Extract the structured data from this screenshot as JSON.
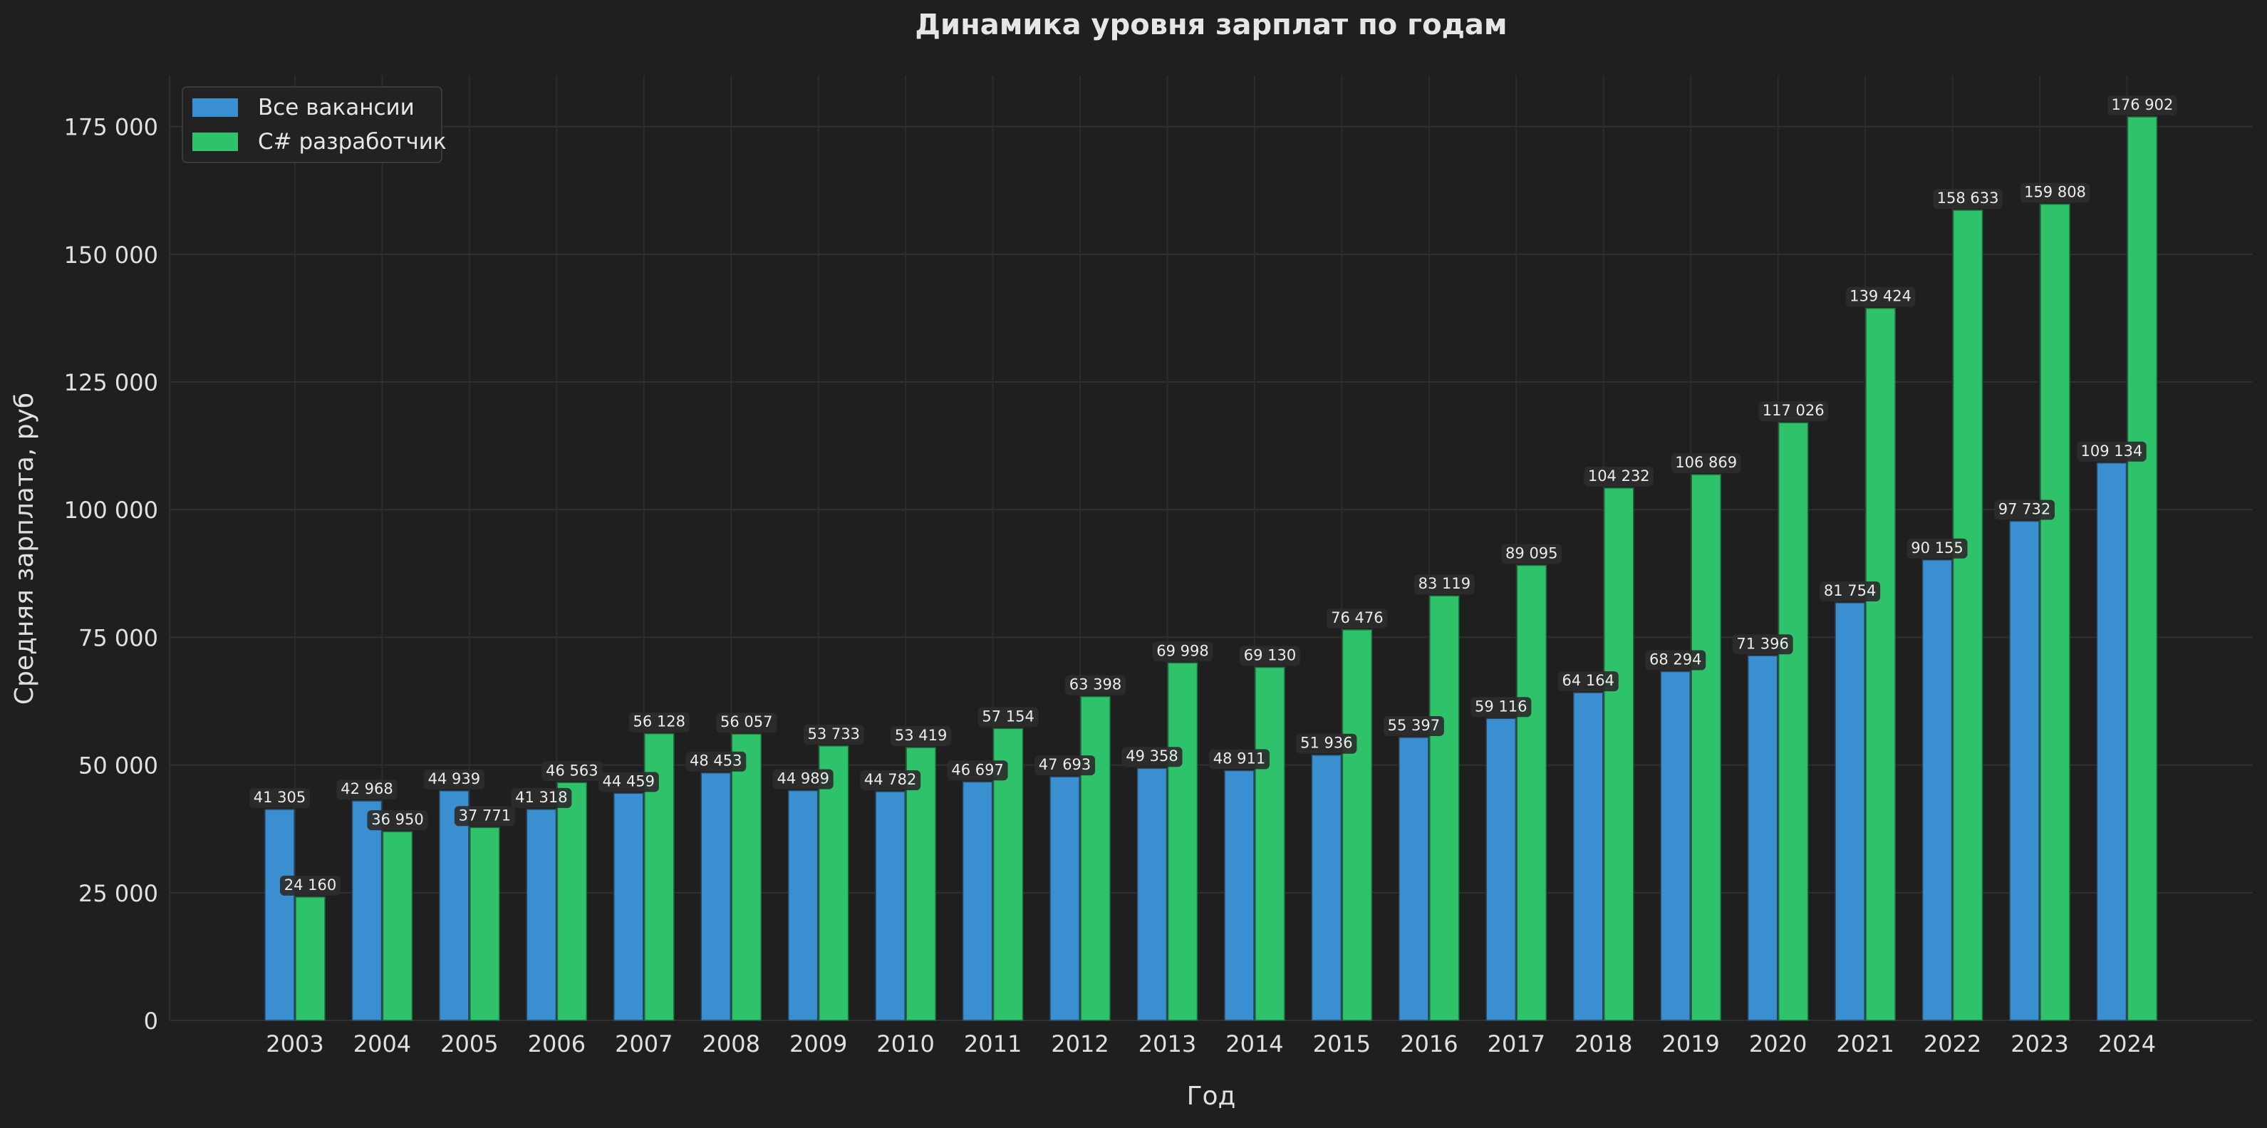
{
  "chart_data": {
    "type": "bar",
    "title": "Динамика уровня зарплат по годам",
    "xlabel": "Год",
    "ylabel": "Средняя зарплата, руб",
    "ylim": [
      0,
      185000
    ],
    "yticks": [
      0,
      25000,
      50000,
      75000,
      100000,
      125000,
      150000,
      175000
    ],
    "ytick_labels": [
      "0",
      "25 000",
      "50 000",
      "75 000",
      "100 000",
      "125 000",
      "150 000",
      "175 000"
    ],
    "grid": true,
    "legend_position": "top-left",
    "categories": [
      "2003",
      "2004",
      "2005",
      "2006",
      "2007",
      "2008",
      "2009",
      "2010",
      "2011",
      "2012",
      "2013",
      "2014",
      "2015",
      "2016",
      "2017",
      "2018",
      "2019",
      "2020",
      "2021",
      "2022",
      "2023",
      "2024"
    ],
    "series": [
      {
        "name": "Все вакансии",
        "color": "#3a8fd0",
        "values": [
          41305,
          42968,
          44939,
          41318,
          44459,
          48453,
          44989,
          44782,
          46697,
          47693,
          49358,
          48911,
          51936,
          55397,
          59116,
          64164,
          68294,
          71396,
          81754,
          90155,
          97732,
          109134
        ],
        "labels": [
          "41 305",
          "42 968",
          "44 939",
          "41 318",
          "44 459",
          "48 453",
          "44 989",
          "44 782",
          "46 697",
          "47 693",
          "49 358",
          "48 911",
          "51 936",
          "55 397",
          "59 116",
          "64 164",
          "68 294",
          "71 396",
          "81 754",
          "90 155",
          "97 732",
          "109 134"
        ]
      },
      {
        "name": "C# разработчик",
        "color": "#2ec26a",
        "values": [
          24160,
          36950,
          37771,
          46563,
          56128,
          56057,
          53733,
          53419,
          57154,
          63398,
          69998,
          69130,
          76476,
          83119,
          89095,
          104232,
          106869,
          117026,
          139424,
          158633,
          159808,
          176902
        ],
        "labels": [
          "24 160",
          "36 950",
          "37 771",
          "46 563",
          "56 128",
          "56 057",
          "53 733",
          "53 419",
          "57 154",
          "63 398",
          "69 998",
          "69 130",
          "76 476",
          "83 119",
          "89 095",
          "104 232",
          "106 869",
          "117 026",
          "139 424",
          "158 633",
          "159 808",
          "176 902"
        ]
      }
    ]
  }
}
